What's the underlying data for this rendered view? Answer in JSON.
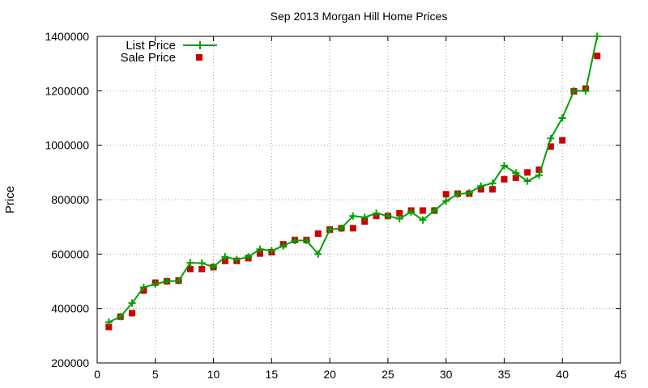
{
  "chart_data": {
    "type": "line",
    "title": "Sep 2013 Morgan Hill Home Prices",
    "xlabel": "",
    "ylabel": "Price",
    "xlim": [
      0,
      45
    ],
    "ylim": [
      200000,
      1400000
    ],
    "x_ticks": [
      "0",
      "5",
      "10",
      "15",
      "20",
      "25",
      "30",
      "35",
      "40",
      "45"
    ],
    "y_ticks": [
      "200000",
      "400000",
      "600000",
      "800000",
      "1000000",
      "1200000",
      "1400000"
    ],
    "grid": true,
    "legend_position": "top-left",
    "x": [
      1,
      2,
      3,
      4,
      5,
      6,
      7,
      8,
      9,
      10,
      11,
      12,
      13,
      14,
      15,
      16,
      17,
      18,
      19,
      20,
      21,
      22,
      23,
      24,
      25,
      26,
      27,
      28,
      29,
      30,
      31,
      32,
      33,
      34,
      35,
      36,
      37,
      38,
      39,
      40,
      41,
      42,
      43
    ],
    "series": [
      {
        "name": "List Price",
        "style": "line-points",
        "marker": "plus",
        "color": "#00a000",
        "values": [
          350000,
          370000,
          420000,
          478000,
          490000,
          500000,
          502000,
          568000,
          567000,
          553000,
          590000,
          580000,
          590000,
          618000,
          612000,
          630000,
          650000,
          650000,
          600000,
          690000,
          695000,
          740000,
          735000,
          750000,
          740000,
          730000,
          755000,
          725000,
          760000,
          795000,
          820000,
          825000,
          850000,
          860000,
          925000,
          898000,
          868000,
          890000,
          1025000,
          1100000,
          1200000,
          1200000,
          1400000
        ]
      },
      {
        "name": "Sale Price",
        "style": "points",
        "marker": "square",
        "color": "#cc0000",
        "values": [
          332000,
          370000,
          383000,
          466000,
          495000,
          500000,
          503000,
          545000,
          545000,
          552000,
          575000,
          575000,
          585000,
          602000,
          607000,
          636000,
          652000,
          652000,
          675000,
          690000,
          695000,
          695000,
          720000,
          740000,
          740000,
          750000,
          760000,
          760000,
          760000,
          820000,
          822000,
          822000,
          838000,
          838000,
          875000,
          880000,
          900000,
          910000,
          995000,
          1018000,
          1198000,
          1208000,
          1328000
        ]
      }
    ]
  }
}
